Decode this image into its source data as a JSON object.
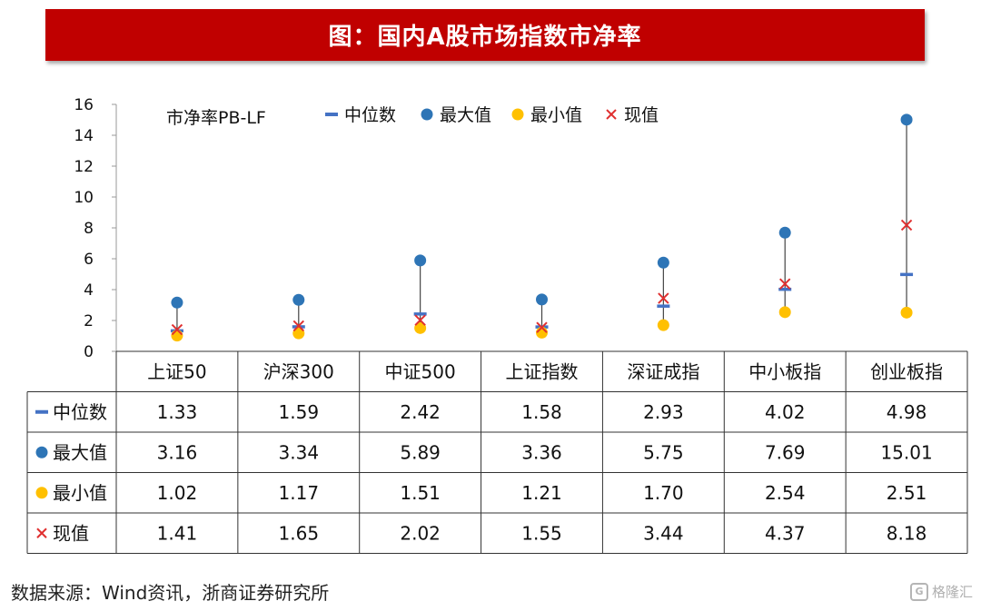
{
  "title": "图：国内A股市场指数市净率",
  "source": "数据来源：Wind资讯，浙商证券研究所",
  "watermark": {
    "text": "格隆汇",
    "icon": "gelonghui-logo-icon"
  },
  "colors": {
    "median": "#4472c4",
    "max": "#2e75b6",
    "min": "#ffc000",
    "current": "#e03030",
    "banner": "#c00000"
  },
  "chart_data": {
    "type": "scatter",
    "chart_label": "市净率PB-LF",
    "categories": [
      "上证50",
      "沪深300",
      "中证500",
      "上证指数",
      "深证成指",
      "中小板指",
      "创业板指"
    ],
    "ylim": [
      0,
      16
    ],
    "yticks": [
      0,
      2,
      4,
      6,
      8,
      10,
      12,
      14,
      16
    ],
    "grid": false,
    "legend_position": "top",
    "series": [
      {
        "key": "median",
        "name": "中位数",
        "marker": "dash",
        "icon": "dash-marker-icon",
        "values": [
          1.33,
          1.59,
          2.42,
          1.58,
          2.93,
          4.02,
          4.98
        ]
      },
      {
        "key": "max",
        "name": "最大值",
        "marker": "circle",
        "icon": "blue-circle-marker-icon",
        "values": [
          3.16,
          3.34,
          5.89,
          3.36,
          5.75,
          7.69,
          15.01
        ]
      },
      {
        "key": "min",
        "name": "最小值",
        "marker": "circle",
        "icon": "yellow-circle-marker-icon",
        "values": [
          1.02,
          1.17,
          1.51,
          1.21,
          1.7,
          2.54,
          2.51
        ]
      },
      {
        "key": "current",
        "name": "现值",
        "marker": "x",
        "icon": "red-x-marker-icon",
        "values": [
          1.41,
          1.65,
          2.02,
          1.55,
          3.44,
          4.37,
          8.18
        ]
      }
    ],
    "table": {
      "rows": [
        {
          "label": "中位数",
          "values": [
            "1.33",
            "1.59",
            "2.42",
            "1.58",
            "2.93",
            "4.02",
            "4.98"
          ]
        },
        {
          "label": "最大值",
          "values": [
            "3.16",
            "3.34",
            "5.89",
            "3.36",
            "5.75",
            "7.69",
            "15.01"
          ]
        },
        {
          "label": "最小值",
          "values": [
            "1.02",
            "1.17",
            "1.51",
            "1.21",
            "1.70",
            "2.54",
            "2.51"
          ]
        },
        {
          "label": "现值",
          "values": [
            "1.41",
            "1.65",
            "2.02",
            "1.55",
            "3.44",
            "4.37",
            "8.18"
          ]
        }
      ]
    }
  }
}
